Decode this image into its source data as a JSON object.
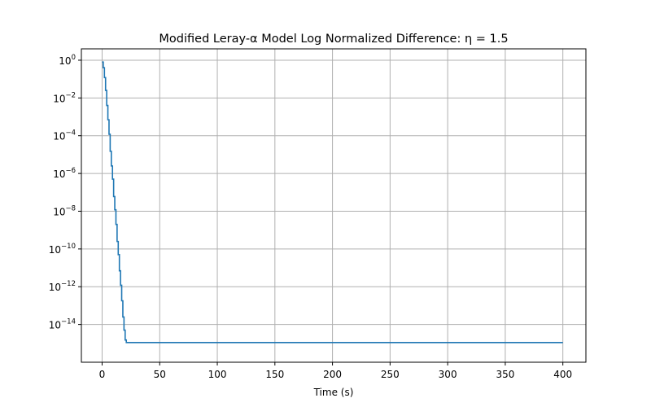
{
  "chart_data": {
    "type": "line",
    "title": "Modified Leray-α Model Log Normalized Difference: η = 1.5",
    "xlabel": "Time (s)",
    "ylabel": "",
    "yscale": "log",
    "xlim": [
      -18,
      420
    ],
    "ylim": [
      1e-16,
      4
    ],
    "grid": true,
    "x_ticks": [
      0,
      50,
      100,
      150,
      200,
      250,
      300,
      350,
      400
    ],
    "y_ticks": [
      {
        "value": 1,
        "base": "10",
        "exp": "0"
      },
      {
        "value": 0.01,
        "base": "10",
        "exp": "−2"
      },
      {
        "value": 0.0001,
        "base": "10",
        "exp": "−4"
      },
      {
        "value": 1e-06,
        "base": "10",
        "exp": "−6"
      },
      {
        "value": 1e-08,
        "base": "10",
        "exp": "−8"
      },
      {
        "value": 1e-10,
        "base": "10",
        "exp": "−10"
      },
      {
        "value": 1e-12,
        "base": "10",
        "exp": "−12"
      },
      {
        "value": 1e-14,
        "base": "10",
        "exp": "−14"
      }
    ],
    "series": [
      {
        "color": "#1f77b4",
        "step": true,
        "x": [
          0,
          1,
          2,
          3,
          4,
          5,
          6,
          7,
          8,
          9,
          10,
          11,
          12,
          13,
          14,
          15,
          16,
          17,
          18,
          19,
          20,
          21,
          22,
          23,
          24,
          400
        ],
        "y": [
          0.8,
          0.4,
          0.12,
          0.025,
          0.004,
          0.0007,
          0.00012,
          1.5e-05,
          2.5e-06,
          5e-07,
          6e-08,
          1.2e-08,
          2e-09,
          2.5e-10,
          5e-11,
          7e-12,
          1.2e-12,
          1.8e-13,
          2.5e-14,
          5e-15,
          1.5e-15,
          1.1e-15,
          1.1e-15,
          1.1e-15,
          1.1e-15,
          1.1e-15
        ]
      }
    ]
  }
}
